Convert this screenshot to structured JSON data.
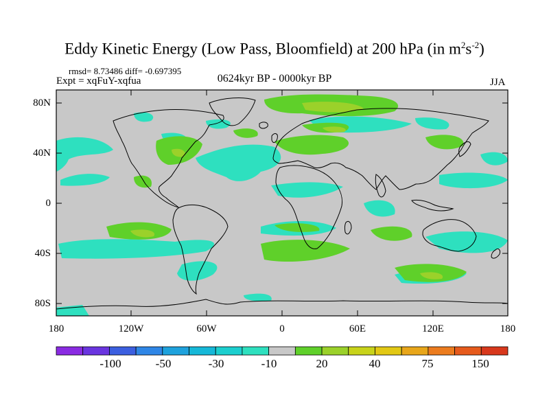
{
  "title": "Eddy Kinetic Energy (Low Pass, Bloomfield) at 200 hPa (in m",
  "title_unit_sup1": "2",
  "title_unit_mid": "s",
  "title_unit_sup2": "-2",
  "title_close": ")",
  "stats": "rmsd= 8.73486 diff= -0.697395",
  "expt": "Expt = xqFuY-xqfua",
  "period": "0624kyr BP - 0000kyr BP",
  "season": "JJA",
  "yaxis": [
    "80N",
    "40N",
    "0",
    "40S",
    "80S"
  ],
  "xaxis": [
    "180",
    "120W",
    "60W",
    "0",
    "60E",
    "120E",
    "180"
  ],
  "colorbar": {
    "labels": [
      "-100",
      "-50",
      "-30",
      "-10",
      "20",
      "40",
      "75",
      "150"
    ],
    "colors": [
      "#8a2be2",
      "#6a35e0",
      "#3c5fe0",
      "#2f86e6",
      "#1ea2dd",
      "#16b8d8",
      "#1ccfcf",
      "#2ee0bf",
      "#c8c8c8",
      "#5fd02a",
      "#9bd12a",
      "#c8d31a",
      "#e2c814",
      "#e8a61a",
      "#ec7c1e",
      "#e65a1c",
      "#d8381c"
    ]
  },
  "palette": {
    "land_bg": "#c8c8c8",
    "cyan": "#2ee0bf",
    "green": "#5fd02a",
    "lightgreen": "#9bd12a",
    "coast": "#000000"
  }
}
